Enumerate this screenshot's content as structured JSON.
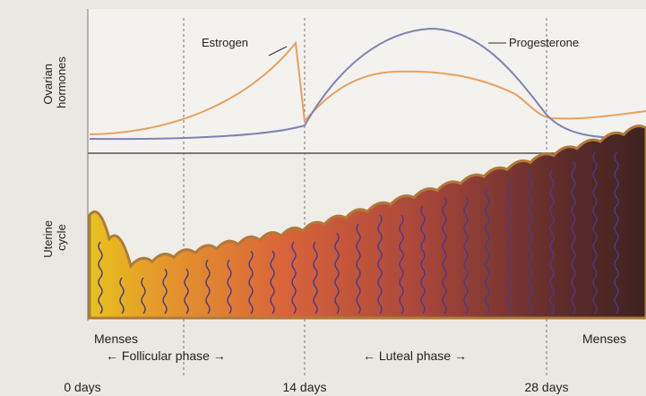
{
  "panels": {
    "hormones": {
      "label": [
        "Ovarian",
        "hormones"
      ],
      "curves": [
        "Estrogen",
        "Progesterone"
      ]
    },
    "uterine": {
      "label": [
        "Uterine",
        "cycle"
      ]
    }
  },
  "phases": {
    "left_menses": "Menses",
    "follicular": "← Follicular phase →",
    "luteal": "← Luteal phase →",
    "right_menses": "Menses"
  },
  "x_labels": [
    "0 days",
    "14 days",
    "28 days"
  ]
}
